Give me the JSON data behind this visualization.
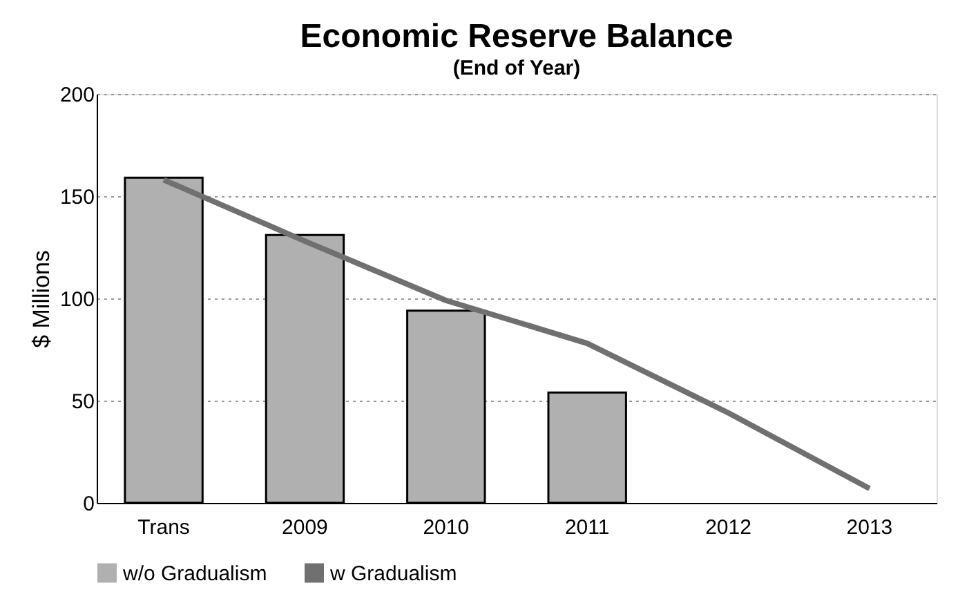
{
  "chart_data": {
    "type": "bar",
    "title": "Economic Reserve Balance",
    "subtitle": "(End of Year)",
    "ylabel": "$ Millions",
    "categories": [
      "Trans",
      "2009",
      "2010",
      "2011",
      "2012",
      "2013"
    ],
    "series": [
      {
        "name": "w/o Gradualism",
        "color": "#b0b0b0",
        "values": [
          159,
          131,
          94,
          54,
          null,
          null
        ]
      },
      {
        "name": "w Gradualism",
        "type": "line",
        "color": "#707070",
        "values": [
          158,
          128,
          99,
          78,
          44,
          7
        ]
      }
    ],
    "ylim": [
      0,
      200
    ],
    "yticks": [
      0,
      50,
      100,
      150,
      200
    ],
    "grid": "y",
    "legend": "bottom"
  }
}
